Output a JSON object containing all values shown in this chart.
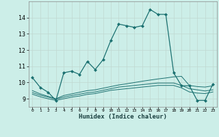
{
  "xlabel": "Humidex (Indice chaleur)",
  "background_color": "#cceee8",
  "line_color": "#1a7070",
  "xlim": [
    -0.5,
    23.5
  ],
  "ylim": [
    8.5,
    15.0
  ],
  "yticks": [
    9,
    10,
    11,
    12,
    13,
    14
  ],
  "xticks": [
    0,
    1,
    2,
    3,
    4,
    5,
    6,
    7,
    8,
    9,
    10,
    11,
    12,
    13,
    14,
    15,
    16,
    17,
    18,
    19,
    20,
    21,
    22,
    23
  ],
  "xtick_labels": [
    "0",
    "1",
    "2",
    "3",
    "4",
    "5",
    "6",
    "7",
    "8",
    "9",
    "10",
    "11",
    "12",
    "13",
    "14",
    "15",
    "16",
    "17",
    "18",
    "19",
    "20",
    "21",
    "22",
    "23"
  ],
  "series": [
    [
      10.3,
      9.7,
      9.4,
      8.9,
      10.6,
      10.7,
      10.5,
      11.3,
      10.8,
      11.4,
      12.6,
      13.6,
      13.5,
      13.4,
      13.5,
      14.5,
      14.2,
      14.2,
      10.6,
      9.8,
      9.8,
      8.9,
      8.9,
      9.9
    ],
    [
      9.5,
      9.3,
      9.15,
      9.0,
      9.2,
      9.3,
      9.4,
      9.5,
      9.55,
      9.65,
      9.75,
      9.85,
      9.92,
      10.0,
      10.08,
      10.15,
      10.22,
      10.28,
      10.35,
      10.38,
      9.82,
      9.75,
      9.72,
      9.8
    ],
    [
      9.38,
      9.22,
      9.1,
      8.97,
      9.1,
      9.2,
      9.28,
      9.37,
      9.42,
      9.52,
      9.62,
      9.72,
      9.77,
      9.82,
      9.87,
      9.92,
      9.97,
      9.97,
      9.97,
      9.82,
      9.62,
      9.55,
      9.48,
      9.55
    ],
    [
      9.28,
      9.12,
      9.0,
      8.9,
      9.0,
      9.1,
      9.17,
      9.27,
      9.32,
      9.42,
      9.52,
      9.57,
      9.62,
      9.67,
      9.72,
      9.77,
      9.82,
      9.82,
      9.82,
      9.67,
      9.42,
      9.35,
      9.32,
      9.42
    ]
  ]
}
